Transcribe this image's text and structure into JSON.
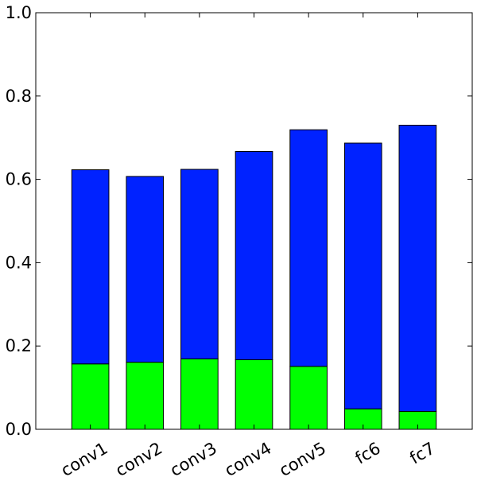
{
  "chart_data": {
    "type": "bar",
    "stacked": true,
    "categories": [
      "conv1",
      "conv2",
      "conv3",
      "conv4",
      "conv5",
      "fc6",
      "fc7"
    ],
    "series": [
      {
        "color": "#00ff00",
        "values": [
          0.157,
          0.161,
          0.169,
          0.167,
          0.151,
          0.049,
          0.043
        ]
      },
      {
        "color": "#0022ff",
        "values": [
          0.466,
          0.446,
          0.455,
          0.5,
          0.568,
          0.638,
          0.687
        ]
      }
    ],
    "totals": [
      0.623,
      0.607,
      0.624,
      0.667,
      0.719,
      0.687,
      0.73
    ],
    "ylim": [
      0,
      1.0
    ],
    "yticks": [
      "0.0",
      "0.2",
      "0.4",
      "0.6",
      "0.8",
      "1.0"
    ],
    "grid": false,
    "xtick_rotation": -30
  }
}
